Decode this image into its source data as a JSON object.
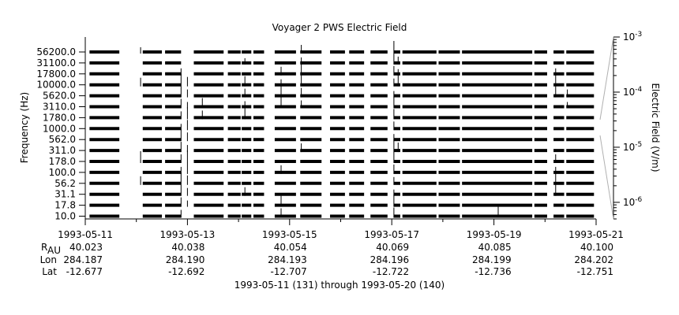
{
  "chart_data": {
    "type": "line",
    "title": "Voyager 2 PWS Electric Field",
    "ylabel": "Frequency (Hz)",
    "colorbar_label": "Electric Field (V/m)",
    "colorbar_ticks": [
      {
        "base": "10",
        "exp": "-3",
        "value": 0.001
      },
      {
        "base": "10",
        "exp": "-4",
        "value": 0.0001
      },
      {
        "base": "10",
        "exp": "-5",
        "value": 1e-05
      },
      {
        "base": "10",
        "exp": "-6",
        "value": 1e-06
      }
    ],
    "colorbar_range": [
      5e-07,
      0.001
    ],
    "frequency_channels": [
      "56200.0",
      "31100.0",
      "17800.0",
      "10000.0",
      "5620.0",
      "3110.0",
      "1780.0",
      "1000.0",
      "562.0",
      "311.0",
      "178.0",
      "100.0",
      "56.2",
      "31.1",
      "17.8",
      "10.0"
    ],
    "x_ticks": [
      "1993-05-11",
      "1993-05-13",
      "1993-05-15",
      "1993-05-17",
      "1993-05-19",
      "1993-05-21"
    ],
    "x_range": [
      "1993-05-11",
      "1993-05-21"
    ],
    "ephemeris": {
      "r_label_main": "R",
      "r_label_sub": "AU",
      "lon_label": "Lon",
      "lat_label": "Lat",
      "r": [
        "40.023",
        "40.038",
        "40.054",
        "40.069",
        "40.085",
        "40.100"
      ],
      "lon": [
        "284.187",
        "284.190",
        "284.193",
        "284.196",
        "284.199",
        "284.202"
      ],
      "lat": [
        "-12.677",
        "-12.692",
        "-12.707",
        "-12.722",
        "-12.736",
        "-12.751"
      ]
    },
    "footer": "1993-05-11 (131) through 1993-05-20 (140)",
    "data_segments": [
      [
        "1993-05-11T02:00",
        "1993-05-11T16:00"
      ],
      [
        "1993-05-12T03:00",
        "1993-05-12T12:00"
      ],
      [
        "1993-05-12T13:30",
        "1993-05-12T21:00"
      ],
      [
        "1993-05-13T03:00",
        "1993-05-13T17:00"
      ],
      [
        "1993-05-13T19:00",
        "1993-05-14T01:00"
      ],
      [
        "1993-05-14T01:30",
        "1993-05-14T06:00"
      ],
      [
        "1993-05-14T07:00",
        "1993-05-14T12:00"
      ],
      [
        "1993-05-14T17:00",
        "1993-05-15T03:00"
      ],
      [
        "1993-05-15T05:00",
        "1993-05-15T15:00"
      ],
      [
        "1993-05-15T19:00",
        "1993-05-16T02:00"
      ],
      [
        "1993-05-16T04:00",
        "1993-05-16T11:00"
      ],
      [
        "1993-05-16T14:00",
        "1993-05-16T22:00"
      ],
      [
        "1993-05-17T01:00",
        "1993-05-17T04:00"
      ],
      [
        "1993-05-17T05:00",
        "1993-05-17T21:00"
      ],
      [
        "1993-05-17T22:00",
        "1993-05-18T08:00"
      ],
      [
        "1993-05-18T09:00",
        "1993-05-19T18:00"
      ],
      [
        "1993-05-19T19:00",
        "1993-05-20T01:00"
      ],
      [
        "1993-05-20T04:00",
        "1993-05-20T09:00"
      ],
      [
        "1993-05-20T10:00",
        "1993-05-20T23:00"
      ],
      [
        "1993-05-21T00:00",
        "1993-05-21T05:00"
      ]
    ],
    "bursts": [
      {
        "time": "1993-05-12T02:00",
        "channels": [
          0,
          3,
          10,
          12
        ]
      },
      {
        "time": "1993-05-12T21:00",
        "channels": [
          2,
          3,
          4,
          5,
          6,
          7,
          8,
          9,
          10,
          11,
          12,
          13,
          14,
          15
        ]
      },
      {
        "time": "1993-05-13T00:00",
        "channels": [
          3,
          4,
          5,
          6,
          7,
          8,
          9,
          10,
          11,
          12,
          13,
          14
        ]
      },
      {
        "time": "1993-05-13T07:00",
        "channels": [
          5,
          6
        ]
      },
      {
        "time": "1993-05-14T03:00",
        "channels": [
          1,
          3,
          4,
          5,
          6,
          13
        ]
      },
      {
        "time": "1993-05-14T20:00",
        "channels": [
          2,
          3,
          4,
          5,
          11,
          14,
          15
        ]
      },
      {
        "time": "1993-05-15T05:30",
        "channels": [
          0,
          1,
          2,
          3,
          4,
          5,
          9
        ]
      },
      {
        "time": "1993-05-17T01:00",
        "channels": [
          0,
          1,
          2,
          3,
          4,
          5,
          6,
          7,
          8,
          9,
          10,
          11,
          12,
          13,
          14,
          15
        ]
      },
      {
        "time": "1993-05-17T03:00",
        "channels": [
          1,
          2,
          3,
          9
        ]
      },
      {
        "time": "1993-05-19T02:00",
        "channels": [
          15
        ]
      },
      {
        "time": "1993-05-20T05:00",
        "channels": [
          2,
          3,
          4,
          10,
          11,
          12,
          13
        ]
      },
      {
        "time": "1993-05-20T10:30",
        "channels": [
          4,
          5
        ]
      }
    ],
    "grid": false,
    "legend": "none"
  }
}
